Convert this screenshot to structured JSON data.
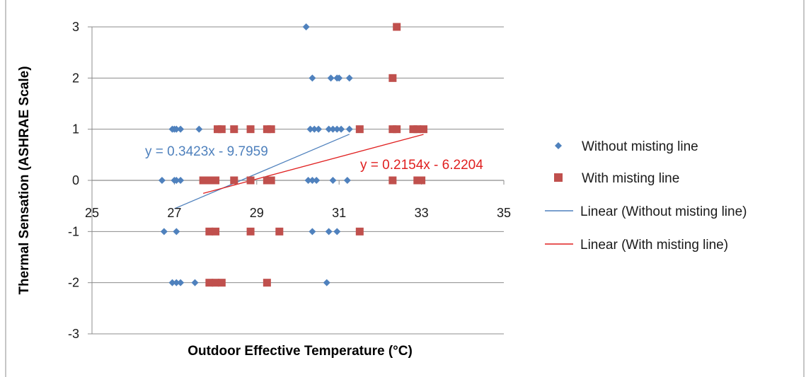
{
  "chart_data": {
    "type": "scatter",
    "title": "",
    "xlabel": "Outdoor Effective Temperature (°C)",
    "ylabel": "Thermal Sensation (ASHRAE Scale)",
    "xlim": [
      25,
      35
    ],
    "ylim": [
      -3,
      3
    ],
    "x_ticks": [
      "25",
      "27",
      "29",
      "31",
      "33",
      "35"
    ],
    "y_ticks": [
      "3",
      "2",
      "1",
      "0",
      "-1",
      "-2",
      "-3"
    ],
    "grid": "horizontal",
    "legend_position": "right",
    "series": [
      {
        "name": "Without misting line",
        "marker": "diamond",
        "color": "#4F81BD",
        "points": [
          [
            30.2,
            3
          ],
          [
            30.35,
            2
          ],
          [
            30.8,
            2
          ],
          [
            30.95,
            2
          ],
          [
            31.0,
            2
          ],
          [
            31.25,
            2
          ],
          [
            26.95,
            1
          ],
          [
            27.0,
            1
          ],
          [
            27.05,
            1
          ],
          [
            27.15,
            1
          ],
          [
            27.6,
            1
          ],
          [
            30.3,
            1
          ],
          [
            30.4,
            1
          ],
          [
            30.5,
            1
          ],
          [
            30.75,
            1
          ],
          [
            30.85,
            1
          ],
          [
            30.95,
            1
          ],
          [
            31.05,
            1
          ],
          [
            31.25,
            1
          ],
          [
            26.7,
            0
          ],
          [
            27.0,
            0
          ],
          [
            27.05,
            0
          ],
          [
            27.15,
            0
          ],
          [
            30.25,
            0
          ],
          [
            30.35,
            0
          ],
          [
            30.45,
            0
          ],
          [
            30.85,
            0
          ],
          [
            31.2,
            0
          ],
          [
            26.75,
            -1
          ],
          [
            27.05,
            -1
          ],
          [
            30.35,
            -1
          ],
          [
            30.75,
            -1
          ],
          [
            30.95,
            -1
          ],
          [
            26.95,
            -2
          ],
          [
            27.05,
            -2
          ],
          [
            27.15,
            -2
          ],
          [
            27.5,
            -2
          ],
          [
            30.7,
            -2
          ]
        ]
      },
      {
        "name": "With misting line",
        "marker": "square",
        "color": "#C0504D",
        "points": [
          [
            32.4,
            3
          ],
          [
            32.3,
            2
          ],
          [
            28.05,
            1
          ],
          [
            28.15,
            1
          ],
          [
            28.45,
            1
          ],
          [
            28.85,
            1
          ],
          [
            29.25,
            1
          ],
          [
            29.35,
            1
          ],
          [
            31.5,
            1
          ],
          [
            32.3,
            1
          ],
          [
            32.4,
            1
          ],
          [
            32.8,
            1
          ],
          [
            32.9,
            1
          ],
          [
            33.05,
            1
          ],
          [
            27.7,
            0
          ],
          [
            27.85,
            0
          ],
          [
            28.0,
            0
          ],
          [
            28.45,
            0
          ],
          [
            28.85,
            0
          ],
          [
            29.25,
            0
          ],
          [
            29.35,
            0
          ],
          [
            32.3,
            0
          ],
          [
            32.9,
            0
          ],
          [
            33.0,
            0
          ],
          [
            27.85,
            -1
          ],
          [
            28.0,
            -1
          ],
          [
            28.85,
            -1
          ],
          [
            29.55,
            -1
          ],
          [
            31.5,
            -1
          ],
          [
            27.85,
            -2
          ],
          [
            28.0,
            -2
          ],
          [
            28.15,
            -2
          ],
          [
            29.25,
            -2
          ]
        ]
      },
      {
        "name": "Linear (Without misting line)",
        "type": "line",
        "color": "#4F81BD",
        "equation": "y = 0.3423x - 9.7959",
        "slope": 0.3423,
        "intercept": -9.7959,
        "x_range": [
          27.0,
          31.25
        ]
      },
      {
        "name": "Linear (With misting line)",
        "type": "line",
        "color": "#E02020",
        "equation": "y = 0.2154x - 6.2204",
        "slope": 0.2154,
        "intercept": -6.2204,
        "x_range": [
          27.7,
          33.05
        ]
      }
    ]
  }
}
